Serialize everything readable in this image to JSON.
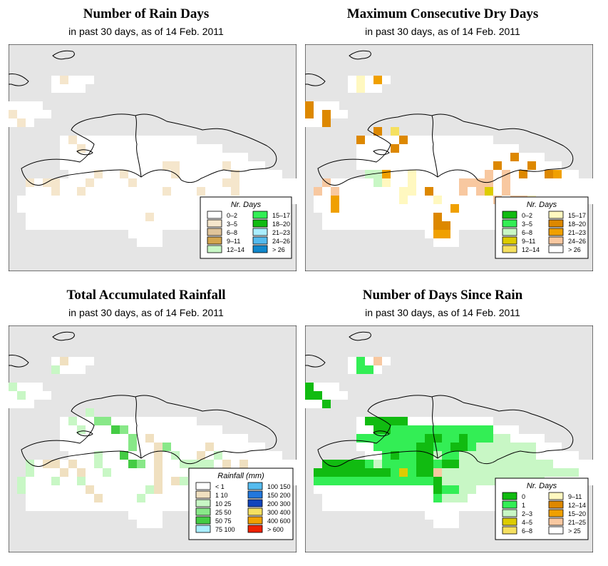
{
  "colors": {
    "sea": "#e5e5e5",
    "land": "#ffffff"
  },
  "panels": [
    {
      "id": "rain-days",
      "title": "Number of Rain Days",
      "subtitle": "in past 30 days, as of  14 Feb. 2011",
      "legend_title": "Nr. Days",
      "legend_left": [
        {
          "label": "0–2",
          "color": "#ffffff"
        },
        {
          "label": "3–5",
          "color": "#f5e6cc"
        },
        {
          "label": "6–8",
          "color": "#e0c49a"
        },
        {
          "label": "9–11",
          "color": "#d3a54e"
        },
        {
          "label": "12–14",
          "color": "#c8f7c5"
        }
      ],
      "legend_right": [
        {
          "label": "15–17",
          "color": "#33ee55"
        },
        {
          "label": "18–20",
          "color": "#11bb11"
        },
        {
          "label": "21–23",
          "color": "#aaeeff"
        },
        {
          "label": "24–26",
          "color": "#55bbee"
        },
        {
          "label": "> 26",
          "color": "#1188cc"
        }
      ]
    },
    {
      "id": "dry-days",
      "title": "Maximum Consecutive Dry Days",
      "subtitle": "in past 30 days, as of  14 Feb. 2011",
      "legend_title": "Nr. Days",
      "legend_left": [
        {
          "label": "0–2",
          "color": "#11bb11"
        },
        {
          "label": "3–5",
          "color": "#33ee55"
        },
        {
          "label": "6–8",
          "color": "#c8f7c5"
        },
        {
          "label": "9–11",
          "color": "#ddcc00"
        },
        {
          "label": "12–14",
          "color": "#f5e060"
        }
      ],
      "legend_right": [
        {
          "label": "15–17",
          "color": "#fff8c0"
        },
        {
          "label": "18–20",
          "color": "#dd8800"
        },
        {
          "label": "21–23",
          "color": "#f0a000"
        },
        {
          "label": "24–26",
          "color": "#f8c8a0"
        },
        {
          "label": "> 26",
          "color": "#ffffff"
        }
      ]
    },
    {
      "id": "rainfall",
      "title": "Total Accumulated Rainfall",
      "subtitle": "in past 30 days, as of  14 Feb. 2011",
      "legend_title": "Rainfall (mm)",
      "legend_left": [
        {
          "label": "< 1",
          "color": "#ffffff"
        },
        {
          "label": "1    10",
          "color": "#f0e0c0"
        },
        {
          "label": "10    25",
          "color": "#c8f7c5"
        },
        {
          "label": "25    50",
          "color": "#88e888"
        },
        {
          "label": "50    75",
          "color": "#44cc44"
        },
        {
          "label": "75   100",
          "color": "#aaeeff"
        }
      ],
      "legend_right": [
        {
          "label": "100   150",
          "color": "#55bbee"
        },
        {
          "label": "150   200",
          "color": "#2277dd"
        },
        {
          "label": "200   300",
          "color": "#1144bb"
        },
        {
          "label": "300   400",
          "color": "#f5e060"
        },
        {
          "label": "400   600",
          "color": "#f0a000"
        },
        {
          "label": "> 600",
          "color": "#ee2200"
        }
      ]
    },
    {
      "id": "since-rain",
      "title": "Number of Days Since Rain",
      "subtitle": "in past 30 days, as of  14 Feb. 2011",
      "legend_title": "Nr. Days",
      "legend_left": [
        {
          "label": "0",
          "color": "#11bb11"
        },
        {
          "label": "1",
          "color": "#33ee55"
        },
        {
          "label": "2–3",
          "color": "#c8f7c5"
        },
        {
          "label": "4–5",
          "color": "#ddcc00"
        },
        {
          "label": "6–8",
          "color": "#f5e060"
        }
      ],
      "legend_right": [
        {
          "label": "9–11",
          "color": "#fff8c0"
        },
        {
          "label": "12–14",
          "color": "#dd8800"
        },
        {
          "label": "15–20",
          "color": "#f0a000"
        },
        {
          "label": "21–25",
          "color": "#f8c8a0"
        },
        {
          "label": "> 25",
          "color": "#ffffff"
        }
      ]
    }
  ],
  "chart_data": [
    {
      "type": "heatmap",
      "title": "Number of Rain Days",
      "subtitle": "in past 30 days, as of  14 Feb. 2011",
      "legend_title": "Nr. Days",
      "classes": [
        "0–2",
        "3–5",
        "6–8",
        "9–11",
        "12–14",
        "15–17",
        "18–20",
        "21–23",
        "24–26",
        "> 26"
      ],
      "region": "Hispaniola (Haiti / Dominican Republic)"
    },
    {
      "type": "heatmap",
      "title": "Maximum Consecutive Dry Days",
      "subtitle": "in past 30 days, as of  14 Feb. 2011",
      "legend_title": "Nr. Days",
      "classes": [
        "0–2",
        "3–5",
        "6–8",
        "9–11",
        "12–14",
        "15–17",
        "18–20",
        "21–23",
        "24–26",
        "> 26"
      ],
      "region": "Hispaniola (Haiti / Dominican Republic)"
    },
    {
      "type": "heatmap",
      "title": "Total Accumulated Rainfall",
      "subtitle": "in past 30 days, as of  14 Feb. 2011",
      "legend_title": "Rainfall (mm)",
      "classes": [
        "< 1",
        "1-10",
        "10-25",
        "25-50",
        "50-75",
        "75-100",
        "100-150",
        "150-200",
        "200-300",
        "300-400",
        "400-600",
        "> 600"
      ],
      "region": "Hispaniola (Haiti / Dominican Republic)"
    },
    {
      "type": "heatmap",
      "title": "Number of Days Since Rain",
      "subtitle": "in past 30 days, as of  14 Feb. 2011",
      "legend_title": "Nr. Days",
      "classes": [
        "0",
        "1",
        "2–3",
        "4–5",
        "6–8",
        "9–11",
        "12–14",
        "15–20",
        "21–25",
        "> 25"
      ],
      "region": "Hispaniola (Haiti / Dominican Republic)"
    }
  ]
}
